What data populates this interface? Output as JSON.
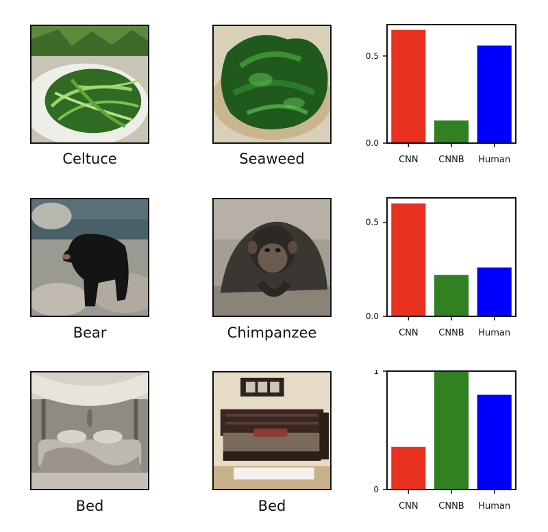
{
  "rows": [
    {
      "images": [
        {
          "caption": "Celtuce",
          "icon": "celtuce-photo"
        },
        {
          "caption": "Seaweed",
          "icon": "seaweed-photo"
        }
      ],
      "chart_data": {
        "type": "bar",
        "categories": [
          "CNN",
          "CNNB",
          "Human"
        ],
        "values": [
          0.65,
          0.13,
          0.56
        ],
        "colors": [
          "#e8311f",
          "#318022",
          "#0000ff"
        ],
        "yticks": [
          0.0,
          0.5
        ],
        "ytick_labels": [
          "0.0",
          "0.5"
        ],
        "ylim": [
          0,
          0.68
        ],
        "title": "",
        "xlabel": "",
        "ylabel": ""
      }
    },
    {
      "images": [
        {
          "caption": "Bear",
          "icon": "bear-photo"
        },
        {
          "caption": "Chimpanzee",
          "icon": "chimpanzee-photo"
        }
      ],
      "chart_data": {
        "type": "bar",
        "categories": [
          "CNN",
          "CNNB",
          "Human"
        ],
        "values": [
          0.6,
          0.22,
          0.26
        ],
        "colors": [
          "#e8311f",
          "#318022",
          "#0000ff"
        ],
        "yticks": [
          0.0,
          0.5
        ],
        "ytick_labels": [
          "0.0",
          "0.5"
        ],
        "ylim": [
          0,
          0.63
        ],
        "title": "",
        "xlabel": "",
        "ylabel": ""
      }
    },
    {
      "images": [
        {
          "caption": "Bed",
          "icon": "bed-photo-dim"
        },
        {
          "caption": "Bed",
          "icon": "bed-photo-wood"
        }
      ],
      "chart_data": {
        "type": "bar",
        "categories": [
          "CNN",
          "CNNB",
          "Human"
        ],
        "values": [
          0.36,
          1.0,
          0.8
        ],
        "colors": [
          "#e8311f",
          "#318022",
          "#0000ff"
        ],
        "yticks": [
          0,
          1
        ],
        "ytick_labels": [
          "0",
          "1"
        ],
        "ylim": [
          0,
          1.0
        ],
        "title": "",
        "xlabel": "",
        "ylabel": ""
      }
    }
  ]
}
